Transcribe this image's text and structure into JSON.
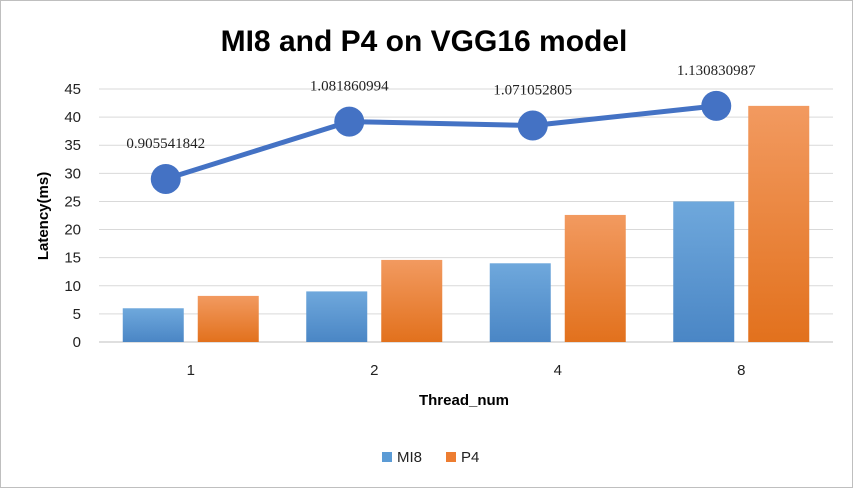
{
  "chart_data": {
    "type": "bar",
    "title": "MI8 and P4 on VGG16 model",
    "xlabel": "Thread_num",
    "ylabel": "Latency(ms)",
    "categories": [
      "1",
      "2",
      "4",
      "8"
    ],
    "ylim": [
      0,
      45
    ],
    "yticks": [
      0,
      5,
      10,
      15,
      20,
      25,
      30,
      35,
      40,
      45
    ],
    "grid": true,
    "legend_position": "bottom",
    "series": [
      {
        "name": "MI8",
        "values": [
          6,
          9,
          14,
          25
        ],
        "color": "#5B9BD5"
      },
      {
        "name": "P4",
        "values": [
          8.2,
          14.6,
          22.6,
          42
        ],
        "color": "#ED7D31"
      }
    ],
    "line_overlay": {
      "values": [
        29,
        39.2,
        38.5,
        42
      ],
      "labels": [
        "0.905541842",
        "1.081860994",
        "1.071052805",
        "1.130830987"
      ],
      "color": "#4472C4"
    }
  }
}
